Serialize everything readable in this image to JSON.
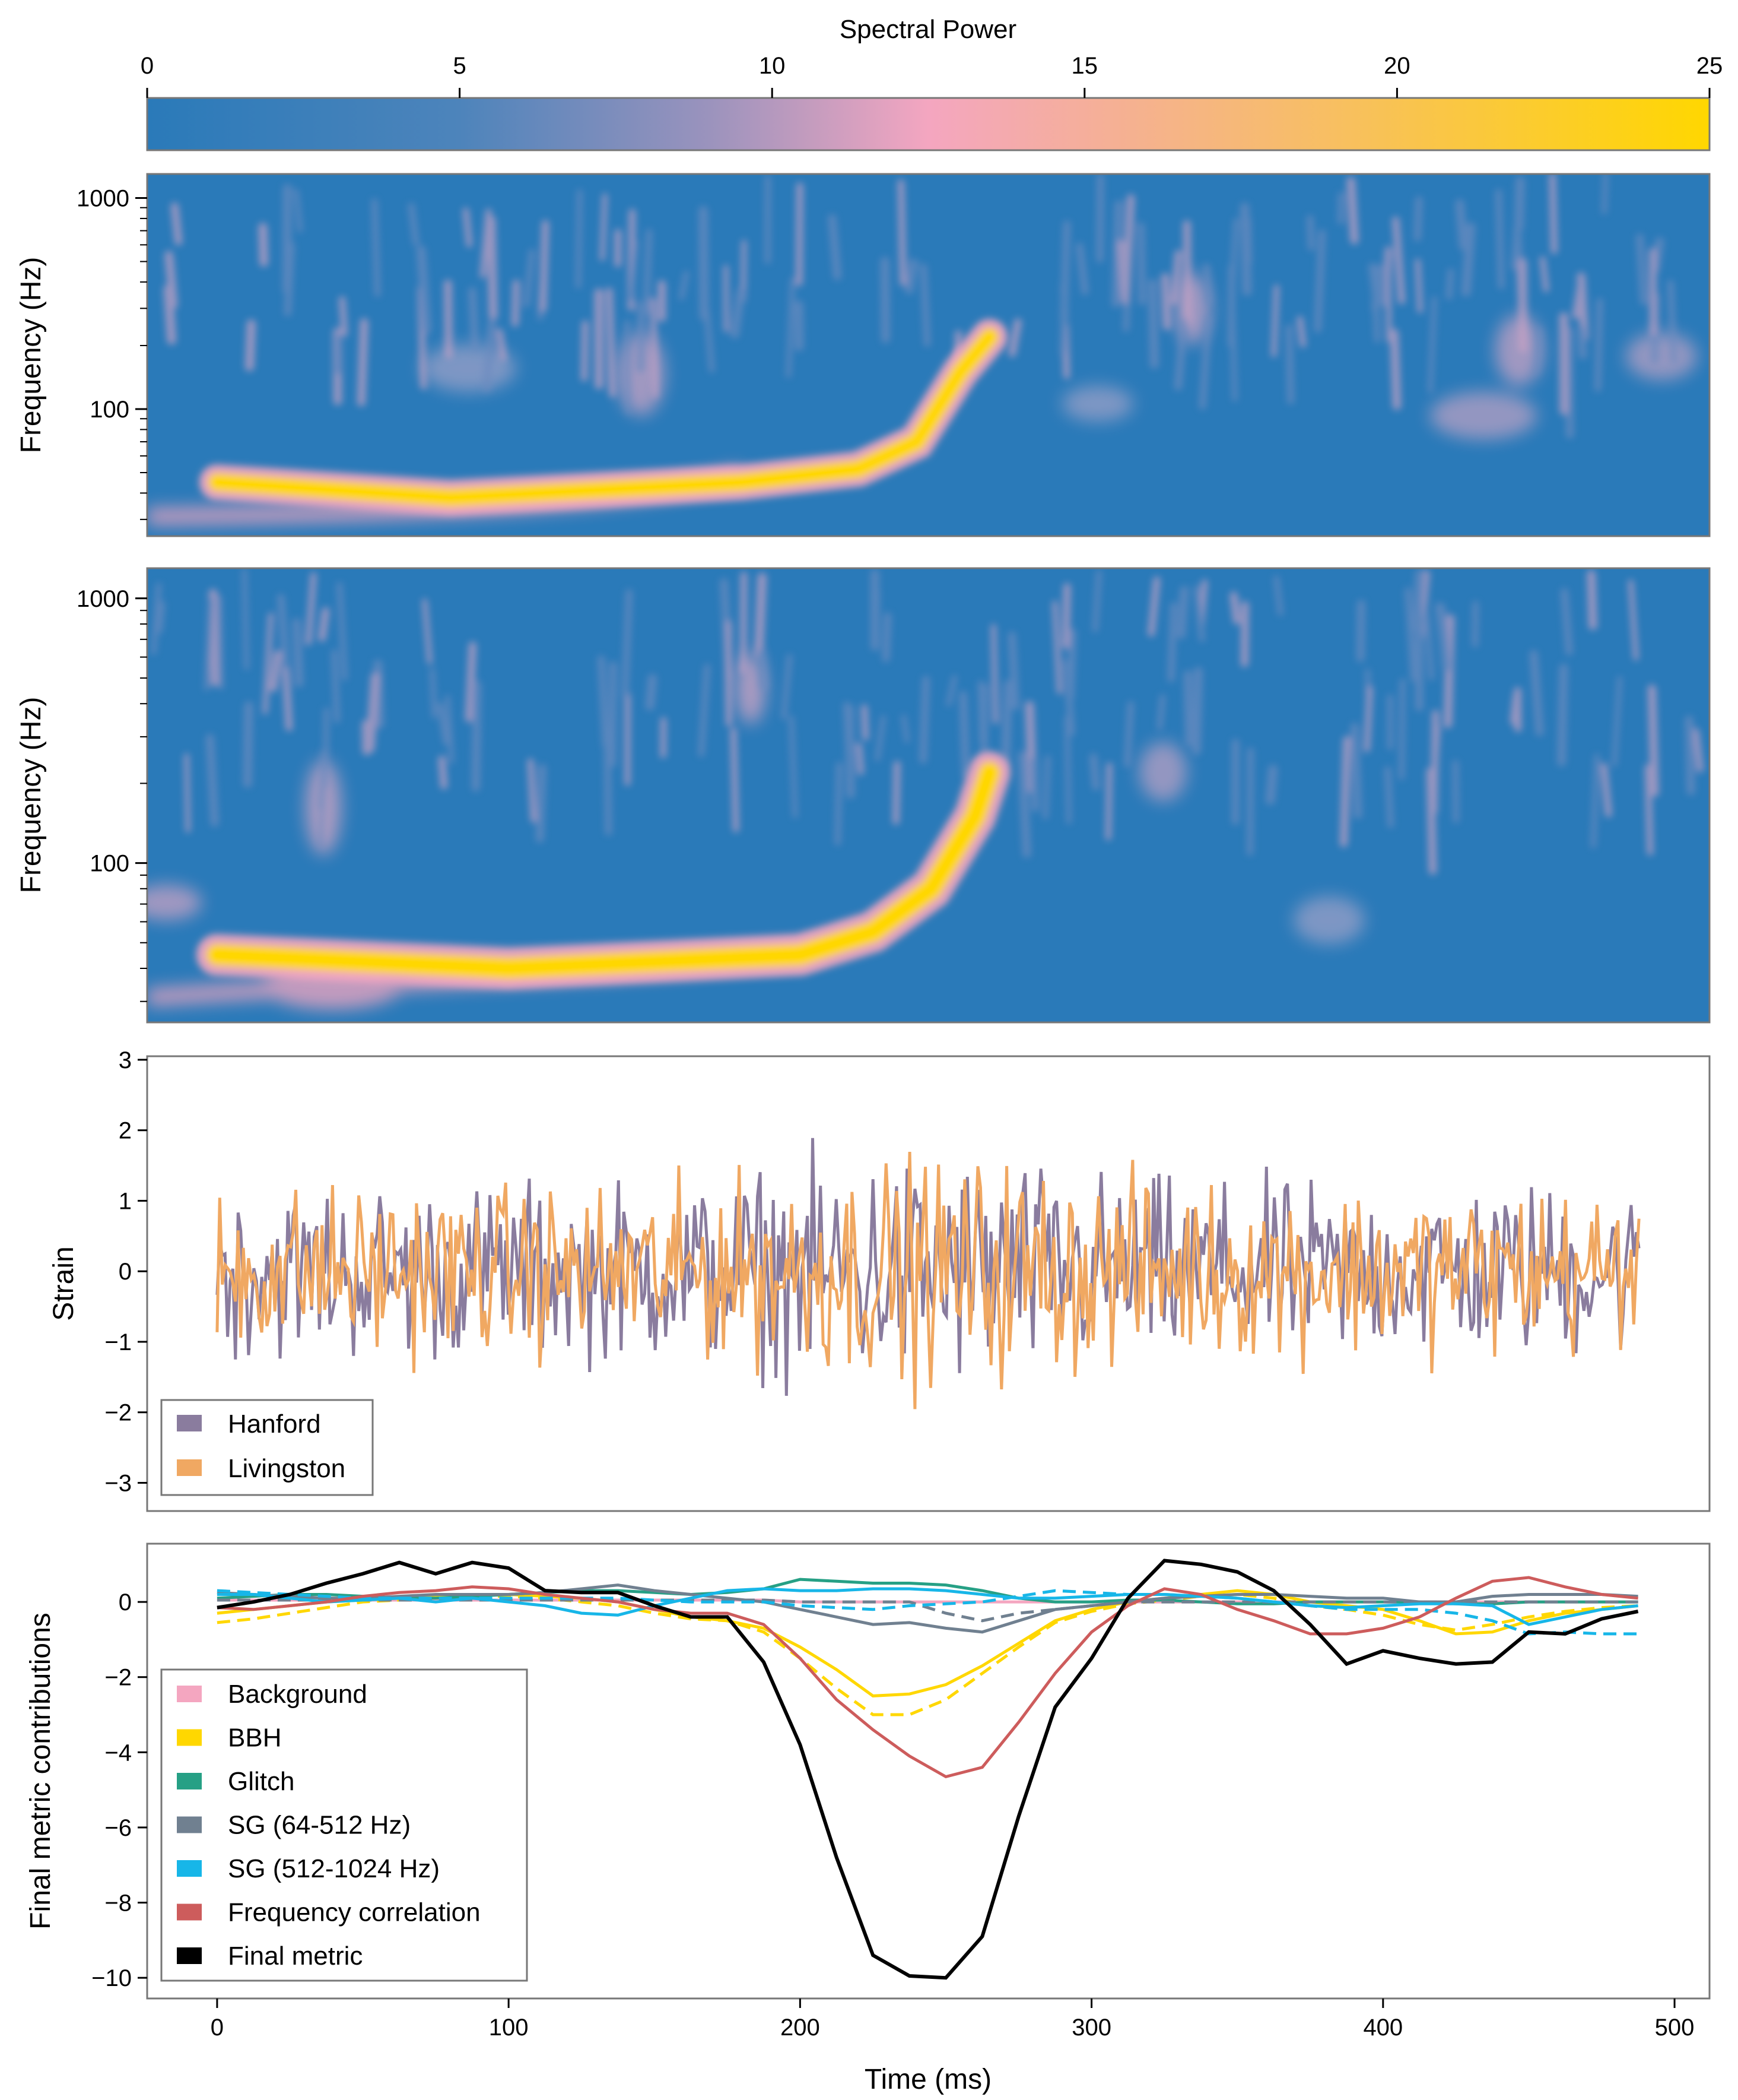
{
  "colorbar": {
    "title": "Spectral Power",
    "range": [
      0,
      25
    ],
    "ticks": [
      "0",
      "5",
      "10",
      "15",
      "20",
      "25"
    ],
    "colors": [
      "#2a7ab9",
      "#7d8cbb",
      "#f4a6c0",
      "#f8c15a",
      "#ffd700"
    ]
  },
  "spectrogram_h": {
    "ylabel": "Frequency (Hz)",
    "yscale": "log",
    "yticks": [
      "100",
      "1000"
    ],
    "track": [
      [
        0,
        45
      ],
      [
        80,
        38
      ],
      [
        180,
        45
      ],
      [
        220,
        52
      ],
      [
        240,
        70
      ],
      [
        255,
        150
      ],
      [
        265,
        220
      ]
    ]
  },
  "spectrogram_l": {
    "ylabel": "Frequency (Hz)",
    "yscale": "log",
    "yticks": [
      "100",
      "1000"
    ],
    "track": [
      [
        0,
        45
      ],
      [
        100,
        40
      ],
      [
        200,
        45
      ],
      [
        225,
        55
      ],
      [
        245,
        80
      ],
      [
        260,
        150
      ],
      [
        265,
        220
      ]
    ]
  },
  "strain": {
    "ylabel": "Strain",
    "ylim": [
      -3.4,
      3.05
    ],
    "yticks": [
      "3",
      "2",
      "1",
      "0",
      "−1",
      "−2",
      "−3"
    ],
    "legend": [
      "Hanford",
      "Livingston"
    ],
    "colors": {
      "Hanford": "#8a7c9e",
      "Livingston": "#f0a862"
    }
  },
  "chart_data": {
    "type": "line",
    "xlabel": "Time (ms)",
    "ylabel": "Final metric contributions",
    "xlim": [
      -24,
      512
    ],
    "ylim": [
      -10.55,
      1.55
    ],
    "xticks": [
      "0",
      "100",
      "200",
      "300",
      "400",
      "500"
    ],
    "yticks": [
      "0",
      "−2",
      "−4",
      "−6",
      "−8",
      "−10"
    ],
    "x": [
      0,
      12.5,
      25,
      37.5,
      50,
      62.5,
      75,
      87.5,
      100,
      112.5,
      125,
      137.5,
      150,
      162.5,
      175,
      187.5,
      200,
      212.5,
      225,
      237.5,
      250,
      262.5,
      275,
      287.5,
      300,
      312.5,
      325,
      337.5,
      350,
      362.5,
      375,
      387.5,
      400,
      412.5,
      425,
      437.5,
      450,
      462.5,
      475,
      487.5
    ],
    "series": [
      {
        "name": "Background",
        "color": "#f4a6c0",
        "dash": false,
        "values": [
          0.05,
          0.05,
          0.05,
          0.05,
          0.05,
          0.05,
          0.05,
          0.05,
          0.05,
          0.05,
          0.05,
          0.05,
          0.05,
          0.05,
          0.05,
          0.05,
          0.0,
          0.0,
          0.0,
          0.0,
          0.0,
          0.0,
          0.0,
          0.0,
          0.0,
          0.0,
          0.0,
          0.0,
          0.0,
          0.0,
          0.0,
          0.0,
          0.0,
          0.0,
          0.0,
          0.0,
          0.0,
          0.0,
          0.0,
          0.0
        ]
      },
      {
        "name": "BBH",
        "color": "#ffd700",
        "dash": false,
        "values": [
          -0.3,
          -0.2,
          -0.1,
          0.0,
          0.05,
          0.1,
          0.15,
          0.2,
          0.2,
          0.15,
          0.1,
          0.0,
          -0.2,
          -0.4,
          -0.5,
          -0.7,
          -1.2,
          -1.8,
          -2.5,
          -2.45,
          -2.2,
          -1.7,
          -1.1,
          -0.5,
          -0.2,
          0.0,
          0.1,
          0.2,
          0.3,
          0.2,
          0.0,
          -0.1,
          -0.2,
          -0.5,
          -0.85,
          -0.8,
          -0.5,
          -0.3,
          -0.2,
          -0.1
        ]
      },
      {
        "name": "BBH-alt",
        "color": "#ffd700",
        "dash": true,
        "values": [
          -0.55,
          -0.45,
          -0.3,
          -0.15,
          0.0,
          0.05,
          0.1,
          0.15,
          0.15,
          0.1,
          0.0,
          -0.1,
          -0.3,
          -0.45,
          -0.5,
          -0.8,
          -1.5,
          -2.3,
          -3.0,
          -3.0,
          -2.6,
          -1.9,
          -1.2,
          -0.55,
          -0.25,
          -0.05,
          0.05,
          0.15,
          0.2,
          0.1,
          -0.1,
          -0.2,
          -0.35,
          -0.6,
          -0.75,
          -0.6,
          -0.4,
          -0.25,
          -0.15,
          -0.1
        ]
      },
      {
        "name": "Glitch",
        "color": "#26a085",
        "dash": false,
        "values": [
          0.1,
          0.15,
          0.2,
          0.2,
          0.15,
          0.1,
          0.1,
          0.15,
          0.2,
          0.25,
          0.3,
          0.3,
          0.25,
          0.2,
          0.25,
          0.35,
          0.6,
          0.55,
          0.5,
          0.5,
          0.45,
          0.3,
          0.1,
          0.0,
          0.0,
          0.05,
          0.05,
          0.0,
          -0.05,
          -0.05,
          0.0,
          0.0,
          0.0,
          0.0,
          -0.05,
          -0.05,
          0.0,
          0.0,
          0.0,
          0.0
        ]
      },
      {
        "name": "SG (64-512 Hz)",
        "color": "#708090",
        "dash": false,
        "values": [
          0.25,
          0.2,
          0.15,
          0.1,
          0.1,
          0.15,
          0.2,
          0.2,
          0.2,
          0.25,
          0.35,
          0.45,
          0.3,
          0.2,
          0.1,
          0.0,
          -0.2,
          -0.4,
          -0.6,
          -0.55,
          -0.7,
          -0.8,
          -0.5,
          -0.2,
          -0.1,
          0.0,
          0.1,
          0.15,
          0.2,
          0.2,
          0.15,
          0.1,
          0.1,
          0.0,
          0.0,
          0.15,
          0.2,
          0.2,
          0.2,
          0.15
        ]
      },
      {
        "name": "SG (64-512 Hz)-alt",
        "color": "#708090",
        "dash": true,
        "values": [
          0.05,
          0.05,
          0.05,
          0.05,
          0.05,
          0.05,
          0.05,
          0.05,
          0.05,
          0.05,
          0.05,
          0.05,
          0.05,
          0.05,
          0.05,
          0.05,
          0.0,
          0.0,
          0.0,
          0.0,
          -0.3,
          -0.5,
          -0.3,
          -0.2,
          -0.1,
          0.0,
          0.0,
          0.0,
          0.0,
          0.0,
          0.0,
          0.0,
          0.0,
          0.0,
          0.0,
          0.0,
          0.0,
          0.0,
          0.0,
          0.0
        ]
      },
      {
        "name": "SG (512-1024 Hz)",
        "color": "#17b6e8",
        "dash": false,
        "values": [
          0.2,
          0.2,
          0.1,
          0.0,
          0.05,
          0.1,
          0.0,
          0.1,
          0.0,
          -0.1,
          -0.3,
          -0.35,
          -0.1,
          0.1,
          0.3,
          0.35,
          0.3,
          0.3,
          0.35,
          0.35,
          0.3,
          0.2,
          0.1,
          0.1,
          0.15,
          0.2,
          0.2,
          0.15,
          0.1,
          0.0,
          -0.1,
          -0.15,
          -0.1,
          -0.05,
          -0.05,
          -0.1,
          -0.6,
          -0.4,
          -0.2,
          -0.1
        ]
      },
      {
        "name": "SG (512-1024 Hz)-alt",
        "color": "#17b6e8",
        "dash": true,
        "values": [
          0.3,
          0.25,
          0.2,
          0.15,
          0.1,
          0.1,
          0.1,
          0.1,
          0.1,
          0.1,
          0.1,
          0.1,
          0.05,
          0.0,
          0.0,
          0.0,
          -0.1,
          -0.15,
          -0.2,
          -0.1,
          -0.05,
          0.0,
          0.15,
          0.3,
          0.25,
          0.2,
          0.2,
          0.15,
          0.1,
          0.0,
          -0.1,
          -0.2,
          -0.2,
          -0.2,
          -0.3,
          -0.5,
          -0.85,
          -0.8,
          -0.85,
          -0.85
        ]
      },
      {
        "name": "Frequency correlation",
        "color": "#cd5c5c",
        "dash": false,
        "values": [
          -0.15,
          -0.2,
          -0.1,
          0.0,
          0.15,
          0.25,
          0.3,
          0.4,
          0.35,
          0.2,
          0.1,
          0.0,
          -0.2,
          -0.3,
          -0.3,
          -0.6,
          -1.5,
          -2.6,
          -3.4,
          -4.1,
          -4.65,
          -4.4,
          -3.2,
          -1.9,
          -0.8,
          -0.1,
          0.35,
          0.2,
          -0.2,
          -0.5,
          -0.85,
          -0.85,
          -0.7,
          -0.4,
          0.1,
          0.55,
          0.65,
          0.4,
          0.2,
          0.1
        ]
      },
      {
        "name": "Final metric",
        "color": "#000000",
        "dash": false,
        "values": [
          -0.15,
          0.0,
          0.2,
          0.5,
          0.75,
          1.05,
          0.75,
          1.05,
          0.9,
          0.3,
          0.25,
          0.25,
          -0.1,
          -0.4,
          -0.4,
          -1.6,
          -3.8,
          -6.8,
          -9.4,
          -9.95,
          -10.0,
          -8.9,
          -5.7,
          -2.8,
          -1.5,
          0.1,
          1.1,
          1.0,
          0.8,
          0.3,
          -0.6,
          -1.65,
          -1.3,
          -1.5,
          -1.65,
          -1.6,
          -0.8,
          -0.85,
          -0.45,
          -0.25
        ]
      }
    ],
    "legend": [
      {
        "label": "Background",
        "color": "#f4a6c0"
      },
      {
        "label": "BBH",
        "color": "#ffd700"
      },
      {
        "label": "Glitch",
        "color": "#26a085"
      },
      {
        "label": "SG (64-512 Hz)",
        "color": "#708090"
      },
      {
        "label": "SG (512-1024 Hz)",
        "color": "#17b6e8"
      },
      {
        "label": "Frequency correlation",
        "color": "#cd5c5c"
      },
      {
        "label": "Final metric",
        "color": "#000000"
      }
    ]
  }
}
